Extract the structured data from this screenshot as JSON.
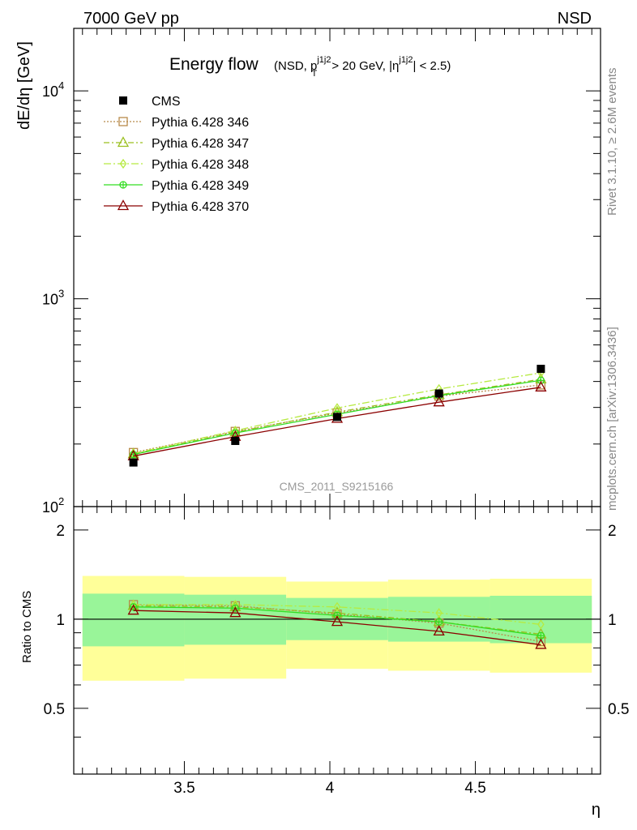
{
  "header": {
    "left": "7000 GeV pp",
    "right": "NSD"
  },
  "side_text": {
    "rivet": "Rivet 3.1.10, ≥ 2.6M events",
    "mcplots": "mcplots.cern.ch [arXiv:1306.3436]"
  },
  "watermark": "CMS_2011_S9215166",
  "chart_data": [
    {
      "panel": "main",
      "type": "line",
      "title": "Energy flow",
      "title_cut": "(NSD, p_T^{j1j2} > 20 GeV, |η^{j1j2}| < 2.5)",
      "ylabel": "dE/dη [GeV]",
      "xlabel": "η",
      "xlim": [
        3.12,
        4.93
      ],
      "ylim": [
        100,
        20000
      ],
      "yscale": "log",
      "yticks": [
        {
          "value": 100,
          "base": "10",
          "exp": "2"
        },
        {
          "value": 1000,
          "base": "10",
          "exp": "3"
        },
        {
          "value": 10000,
          "base": "10",
          "exp": "4"
        }
      ],
      "legend_position": "top-left",
      "x": [
        3.325,
        3.675,
        4.025,
        4.375,
        4.725
      ],
      "series": [
        {
          "name": "CMS",
          "color": "#000000",
          "marker": "square-filled",
          "dash": "",
          "values": [
            163,
            207,
            270,
            350,
            460
          ]
        },
        {
          "name": "Pythia 6.428 346",
          "color": "#b88a4a",
          "marker": "square-open",
          "dash": "2,2",
          "values": [
            182,
            230,
            282,
            340,
            385
          ]
        },
        {
          "name": "Pythia 6.428 347",
          "color": "#9abf1f",
          "marker": "triangle-open",
          "dash": "7,3,2,3",
          "values": [
            179,
            228,
            285,
            345,
            410
          ]
        },
        {
          "name": "Pythia 6.428 348",
          "color": "#b6ea40",
          "marker": "diamond-open",
          "dash": "9,3,2,3",
          "values": [
            180,
            232,
            298,
            368,
            440
          ]
        },
        {
          "name": "Pythia 6.428 349",
          "color": "#33dd22",
          "marker": "circle-cross",
          "dash": "",
          "values": [
            178,
            226,
            278,
            342,
            405
          ]
        },
        {
          "name": "Pythia 6.428 370",
          "color": "#8b0000",
          "marker": "triangle-open",
          "dash": "",
          "values": [
            175,
            217,
            265,
            318,
            375
          ]
        }
      ]
    },
    {
      "panel": "ratio",
      "type": "line",
      "ylabel": "Ratio to CMS",
      "xlabel": "η",
      "xlim": [
        3.12,
        4.93
      ],
      "ylim": [
        0.3,
        2.4
      ],
      "xticks": [
        3.5,
        4,
        4.5
      ],
      "xtick_labels": [
        "3.5",
        "4",
        "4.5"
      ],
      "yticks": [
        0.5,
        1,
        2
      ],
      "ytick_labels": [
        "0.5",
        "1",
        "2"
      ],
      "reference_line": 1,
      "bands": [
        {
          "x_from": 3.15,
          "x_to": 3.5,
          "yellow": [
            0.62,
            1.4
          ],
          "green": [
            0.81,
            1.22
          ]
        },
        {
          "x_from": 3.5,
          "x_to": 3.85,
          "yellow": [
            0.63,
            1.39
          ],
          "green": [
            0.82,
            1.21
          ]
        },
        {
          "x_from": 3.85,
          "x_to": 4.2,
          "yellow": [
            0.68,
            1.34
          ],
          "green": [
            0.85,
            1.18
          ]
        },
        {
          "x_from": 4.2,
          "x_to": 4.55,
          "yellow": [
            0.67,
            1.36
          ],
          "green": [
            0.84,
            1.19
          ]
        },
        {
          "x_from": 4.55,
          "x_to": 4.9,
          "yellow": [
            0.66,
            1.37
          ],
          "green": [
            0.83,
            1.2
          ]
        }
      ],
      "band_colors": {
        "yellow": "#ffff99",
        "green": "#99f599"
      },
      "x": [
        3.325,
        3.675,
        4.025,
        4.375,
        4.725
      ],
      "series": [
        {
          "name": "Pythia 6.428 346",
          "color": "#b88a4a",
          "marker": "square-open",
          "dash": "2,2",
          "values": [
            1.12,
            1.11,
            1.04,
            0.97,
            0.84
          ]
        },
        {
          "name": "Pythia 6.428 347",
          "color": "#9abf1f",
          "marker": "triangle-open",
          "dash": "7,3,2,3",
          "values": [
            1.11,
            1.1,
            1.05,
            0.98,
            0.89
          ]
        },
        {
          "name": "Pythia 6.428 348",
          "color": "#b6ea40",
          "marker": "diamond-open",
          "dash": "9,3,2,3",
          "values": [
            1.12,
            1.12,
            1.1,
            1.05,
            0.96
          ]
        },
        {
          "name": "Pythia 6.428 349",
          "color": "#33dd22",
          "marker": "circle-cross",
          "dash": "",
          "values": [
            1.1,
            1.09,
            1.03,
            0.98,
            0.88
          ]
        },
        {
          "name": "Pythia 6.428 370",
          "color": "#8b0000",
          "marker": "triangle-open",
          "dash": "",
          "values": [
            1.07,
            1.05,
            0.98,
            0.91,
            0.82
          ]
        }
      ]
    }
  ]
}
